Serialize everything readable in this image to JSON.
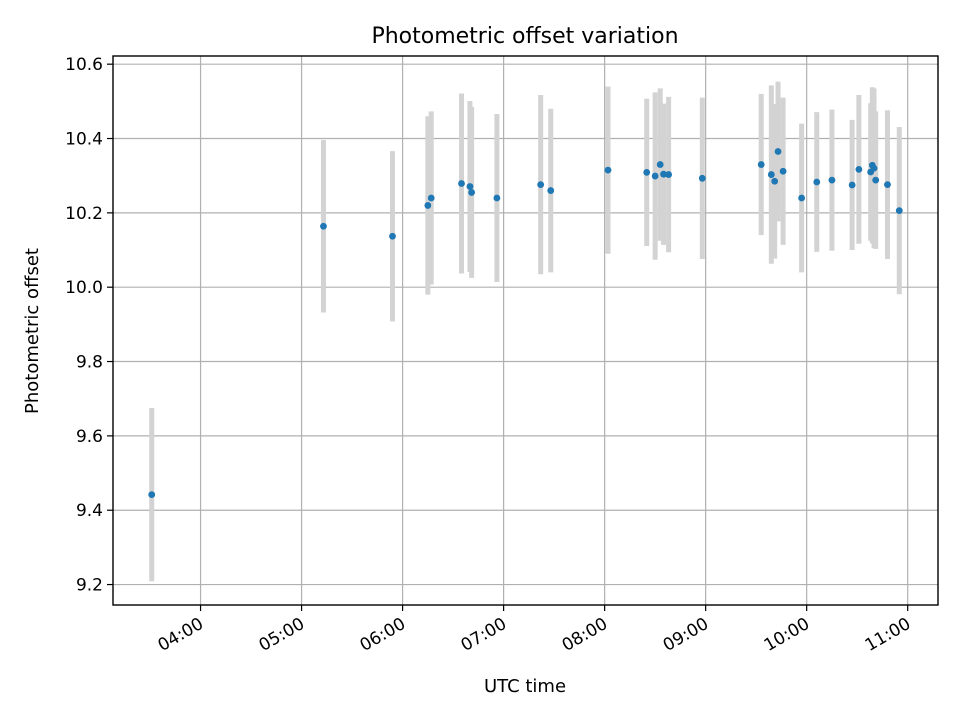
{
  "chart_data": {
    "type": "scatter",
    "title": "Photometric offset variation",
    "xlabel": "UTC time",
    "ylabel": "Photometric offset",
    "xlim": [
      "03:08",
      "11:18"
    ],
    "ylim": [
      9.145,
      10.622
    ],
    "xticks": [
      "04:00",
      "05:00",
      "06:00",
      "07:00",
      "08:00",
      "09:00",
      "10:00",
      "11:00"
    ],
    "yticks": [
      9.2,
      9.4,
      9.6,
      9.8,
      10.0,
      10.2,
      10.4,
      10.6
    ],
    "ytick_labels": [
      "9.2",
      "9.4",
      "9.6",
      "9.8",
      "10.0",
      "10.2",
      "10.4",
      "10.6"
    ],
    "grid": true,
    "colors": {
      "points": "#1f77b4",
      "errorbars": "#d3d3d3",
      "grid": "#b0b0b0"
    },
    "points": [
      {
        "x": "03:31",
        "y": 9.442,
        "err": 0.233
      },
      {
        "x": "05:13",
        "y": 10.164,
        "err": 0.232
      },
      {
        "x": "05:54",
        "y": 10.137,
        "err": 0.229
      },
      {
        "x": "06:15",
        "y": 10.22,
        "err": 0.24
      },
      {
        "x": "06:17",
        "y": 10.24,
        "err": 0.233
      },
      {
        "x": "06:35",
        "y": 10.279,
        "err": 0.242
      },
      {
        "x": "06:40",
        "y": 10.271,
        "err": 0.23
      },
      {
        "x": "06:41",
        "y": 10.255,
        "err": 0.23
      },
      {
        "x": "06:56",
        "y": 10.24,
        "err": 0.226
      },
      {
        "x": "07:22",
        "y": 10.276,
        "err": 0.241
      },
      {
        "x": "07:28",
        "y": 10.26,
        "err": 0.22
      },
      {
        "x": "08:02",
        "y": 10.315,
        "err": 0.225
      },
      {
        "x": "08:25",
        "y": 10.309,
        "err": 0.198
      },
      {
        "x": "08:30",
        "y": 10.299,
        "err": 0.225
      },
      {
        "x": "08:33",
        "y": 10.33,
        "err": 0.205
      },
      {
        "x": "08:35",
        "y": 10.304,
        "err": 0.19
      },
      {
        "x": "08:38",
        "y": 10.303,
        "err": 0.209
      },
      {
        "x": "08:58",
        "y": 10.293,
        "err": 0.217
      },
      {
        "x": "09:33",
        "y": 10.33,
        "err": 0.19
      },
      {
        "x": "09:39",
        "y": 10.303,
        "err": 0.24
      },
      {
        "x": "09:41",
        "y": 10.285,
        "err": 0.208
      },
      {
        "x": "09:43",
        "y": 10.365,
        "err": 0.188
      },
      {
        "x": "09:46",
        "y": 10.312,
        "err": 0.198
      },
      {
        "x": "09:57",
        "y": 10.24,
        "err": 0.2
      },
      {
        "x": "10:06",
        "y": 10.283,
        "err": 0.188
      },
      {
        "x": "10:15",
        "y": 10.288,
        "err": 0.19
      },
      {
        "x": "10:27",
        "y": 10.275,
        "err": 0.175
      },
      {
        "x": "10:31",
        "y": 10.317,
        "err": 0.2
      },
      {
        "x": "10:38",
        "y": 10.31,
        "err": 0.185
      },
      {
        "x": "10:39",
        "y": 10.328,
        "err": 0.21
      },
      {
        "x": "10:40",
        "y": 10.32,
        "err": 0.215
      },
      {
        "x": "10:41",
        "y": 10.288,
        "err": 0.185
      },
      {
        "x": "10:48",
        "y": 10.276,
        "err": 0.2
      },
      {
        "x": "10:55",
        "y": 10.206,
        "err": 0.225
      }
    ]
  }
}
